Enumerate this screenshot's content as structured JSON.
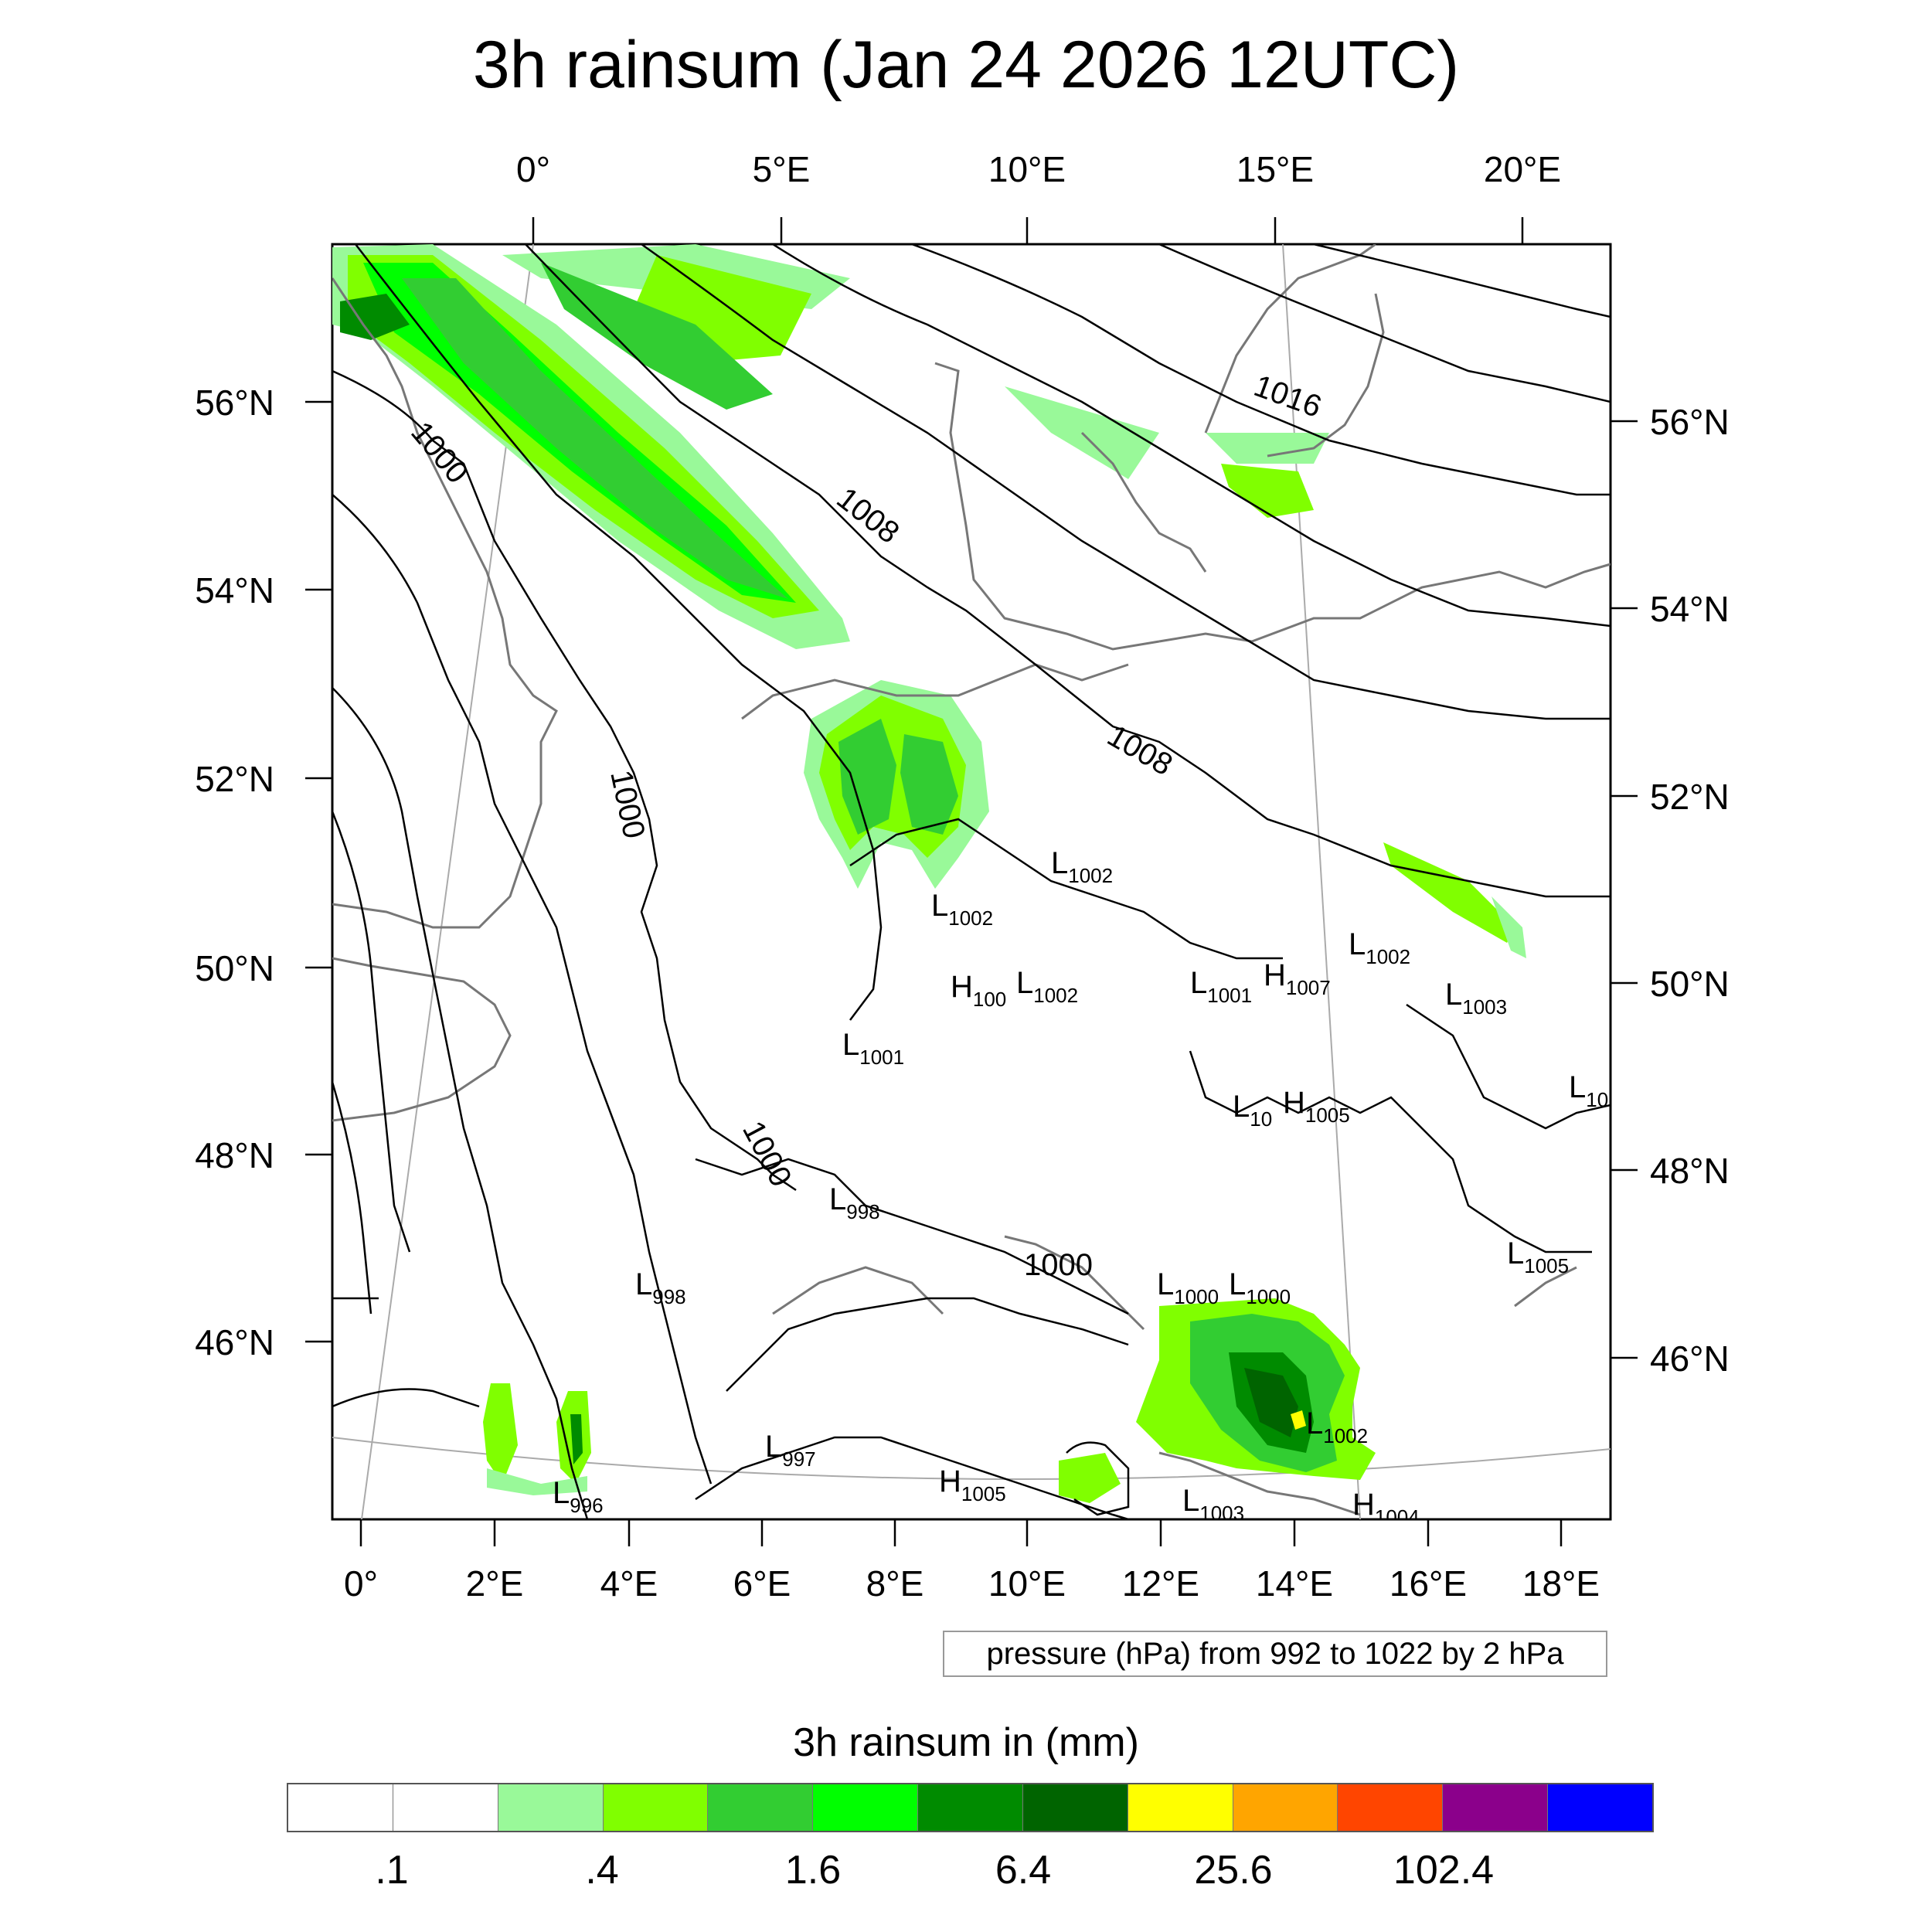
{
  "title": "3h rainsum (Jan 24 2026 12UTC)",
  "top_lon_labels": [
    "0°",
    "5°E",
    "10°E",
    "15°E",
    "20°E"
  ],
  "bottom_lon_labels": [
    "0°",
    "2°E",
    "4°E",
    "6°E",
    "8°E",
    "10°E",
    "12°E",
    "14°E",
    "16°E",
    "18°E"
  ],
  "left_lat_labels": [
    "56°N",
    "54°N",
    "52°N",
    "50°N",
    "48°N",
    "46°N"
  ],
  "right_lat_labels": [
    "56°N",
    "54°N",
    "52°N",
    "50°N",
    "48°N",
    "46°N"
  ],
  "isobar_labels": [
    "1000",
    "1000",
    "1000",
    "1008",
    "1008",
    "1016",
    "1000"
  ],
  "pressure_systems": [
    {
      "letter": "L",
      "value": "1002"
    },
    {
      "letter": "L",
      "value": "1002"
    },
    {
      "letter": "H",
      "value": "100"
    },
    {
      "letter": "L",
      "value": "1002"
    },
    {
      "letter": "L",
      "value": "1001"
    },
    {
      "letter": "H",
      "value": "1007"
    },
    {
      "letter": "L",
      "value": "1002"
    },
    {
      "letter": "L",
      "value": "1003"
    },
    {
      "letter": "L",
      "value": "1001"
    },
    {
      "letter": "L",
      "value": "10"
    },
    {
      "letter": "H",
      "value": "1005"
    },
    {
      "letter": "L",
      "value": "10"
    },
    {
      "letter": "L",
      "value": "998"
    },
    {
      "letter": "L",
      "value": "998"
    },
    {
      "letter": "L",
      "value": "1000"
    },
    {
      "letter": "L",
      "value": "1000"
    },
    {
      "letter": "L",
      "value": "1005"
    },
    {
      "letter": "L",
      "value": "1002"
    },
    {
      "letter": "L",
      "value": "997"
    },
    {
      "letter": "H",
      "value": "1005"
    },
    {
      "letter": "L",
      "value": "1003"
    },
    {
      "letter": "H",
      "value": "1004"
    },
    {
      "letter": "L",
      "value": "996"
    }
  ],
  "pressure_note": "pressure (hPa) from 992 to 1022 by 2 hPa",
  "colorbar": {
    "title": "3h rainsum in (mm)",
    "colors": [
      "#ffffff",
      "#ffffff",
      "#99f999",
      "#80ff00",
      "#32cd32",
      "#00ff00",
      "#008b00",
      "#006400",
      "#ffff00",
      "#ffa500",
      "#ff4500",
      "#8b008b",
      "#0000ff"
    ],
    "tick_labels": [
      ".1",
      ".4",
      "1.6",
      "6.4",
      "25.6",
      "102.4"
    ]
  }
}
